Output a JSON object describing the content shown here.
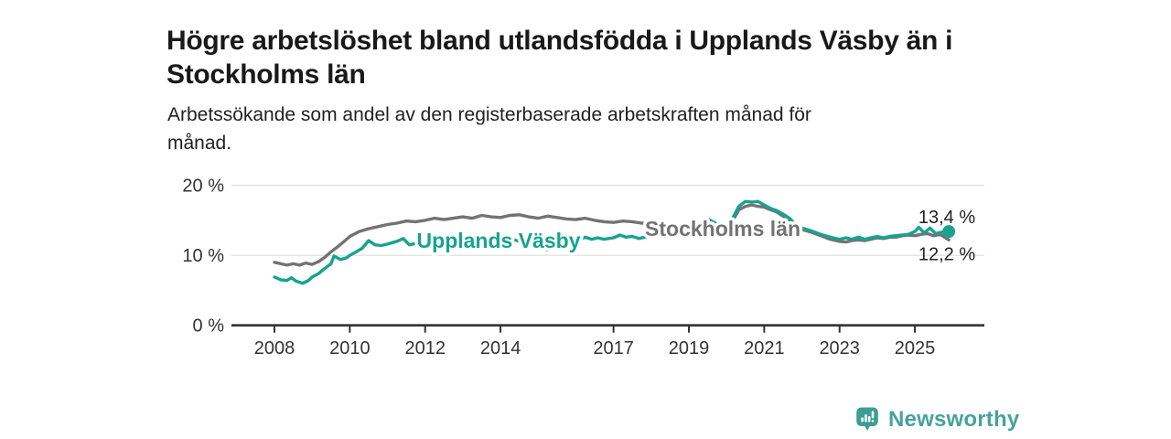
{
  "header": {
    "title": "Högre arbetslöshet bland utlandsfödda i Upplands Väsby än i Stockholms län",
    "title_lines": [
      "Högre arbetslöshet bland utlandsfödda i Upplands Väsby än i",
      "Stockholms län"
    ],
    "subtitle": "Arbetssökande som andel av den registerbaserade arbetskraften månad för månad.",
    "subtitle_lines": [
      "Arbetssökande som andel av den registerbaserade arbetskraften månad för",
      "månad."
    ]
  },
  "branding": {
    "name": "Newsworthy",
    "icon": "bar-chart-speech-bubble-icon",
    "icon_color": "#3d9d92",
    "text_color": "#46a39a"
  },
  "chart_data": {
    "type": "line",
    "title": "Högre arbetslöshet bland utlandsfödda i Upplands Väsby än i Stockholms län",
    "subtitle": "Arbetssökande som andel av den registerbaserade arbetskraften månad för månad.",
    "unit": "%",
    "legend_position": "inline-labels-on-lines",
    "grid": "horizontal-only",
    "x_axis": {
      "range": [
        2007.85,
        2026.8
      ],
      "ticks": [
        {
          "year": 2008,
          "label": "2008"
        },
        {
          "year": 2010,
          "label": "2010"
        },
        {
          "year": 2012,
          "label": "2012"
        },
        {
          "year": 2014,
          "label": "2014"
        },
        {
          "year": 2017,
          "label": "2017"
        },
        {
          "year": 2019,
          "label": "2019"
        },
        {
          "year": 2021,
          "label": "2021"
        },
        {
          "year": 2023,
          "label": "2023"
        },
        {
          "year": 2025,
          "label": "2025"
        }
      ]
    },
    "y_axis": {
      "range": [
        0,
        20
      ],
      "ticks": [
        {
          "value": 0,
          "label": "0 %"
        },
        {
          "value": 10,
          "label": "10 %"
        },
        {
          "value": 20,
          "label": "20 %"
        }
      ]
    },
    "style": {
      "grid_color": "#dedede",
      "axis_color": "#333333",
      "tick_label_color": "#333333",
      "end_label_color": "#222222",
      "line_width": 3.4
    },
    "series": [
      {
        "name": "Stockholms län",
        "color": "#737373",
        "end_label": "12,2 %",
        "end_label_position": "below",
        "end_dot": false,
        "label_at": {
          "year": 2019.9,
          "value": 13.8
        },
        "points": [
          [
            2008.0,
            9.0
          ],
          [
            2008.17,
            8.8
          ],
          [
            2008.33,
            8.6
          ],
          [
            2008.5,
            8.8
          ],
          [
            2008.67,
            8.6
          ],
          [
            2008.83,
            8.9
          ],
          [
            2009.0,
            8.7
          ],
          [
            2009.17,
            9.1
          ],
          [
            2009.33,
            9.7
          ],
          [
            2009.5,
            10.5
          ],
          [
            2009.67,
            11.2
          ],
          [
            2009.83,
            11.9
          ],
          [
            2010.0,
            12.7
          ],
          [
            2010.25,
            13.4
          ],
          [
            2010.5,
            13.8
          ],
          [
            2010.75,
            14.1
          ],
          [
            2011.0,
            14.4
          ],
          [
            2011.25,
            14.6
          ],
          [
            2011.5,
            14.9
          ],
          [
            2011.75,
            14.8
          ],
          [
            2012.0,
            15.0
          ],
          [
            2012.25,
            15.3
          ],
          [
            2012.5,
            15.1
          ],
          [
            2012.75,
            15.3
          ],
          [
            2013.0,
            15.5
          ],
          [
            2013.25,
            15.3
          ],
          [
            2013.5,
            15.7
          ],
          [
            2013.75,
            15.5
          ],
          [
            2014.0,
            15.4
          ],
          [
            2014.25,
            15.7
          ],
          [
            2014.5,
            15.8
          ],
          [
            2014.75,
            15.5
          ],
          [
            2015.0,
            15.3
          ],
          [
            2015.25,
            15.6
          ],
          [
            2015.5,
            15.4
          ],
          [
            2015.75,
            15.2
          ],
          [
            2016.0,
            15.1
          ],
          [
            2016.25,
            15.3
          ],
          [
            2016.5,
            15.0
          ],
          [
            2016.75,
            14.8
          ],
          [
            2017.0,
            14.7
          ],
          [
            2017.25,
            14.9
          ],
          [
            2017.5,
            14.8
          ],
          [
            2017.75,
            14.6
          ],
          [
            2018.0,
            14.5
          ],
          [
            2018.25,
            14.7
          ],
          [
            2018.5,
            14.4
          ],
          [
            2018.75,
            14.3
          ],
          [
            2019.0,
            14.1
          ],
          [
            2019.25,
            14.3
          ],
          [
            2019.5,
            14.0
          ],
          [
            2019.75,
            13.9
          ],
          [
            2020.0,
            14.0
          ],
          [
            2020.17,
            15.0
          ],
          [
            2020.33,
            16.5
          ],
          [
            2020.5,
            17.0
          ],
          [
            2020.67,
            17.2
          ],
          [
            2020.83,
            17.0
          ],
          [
            2021.0,
            16.9
          ],
          [
            2021.17,
            16.5
          ],
          [
            2021.33,
            16.2
          ],
          [
            2021.5,
            15.6
          ],
          [
            2021.67,
            15.0
          ],
          [
            2021.83,
            14.2
          ],
          [
            2022.0,
            13.7
          ],
          [
            2022.25,
            13.3
          ],
          [
            2022.5,
            12.8
          ],
          [
            2022.75,
            12.3
          ],
          [
            2023.0,
            12.0
          ],
          [
            2023.17,
            11.9
          ],
          [
            2023.33,
            12.1
          ],
          [
            2023.5,
            12.2
          ],
          [
            2023.67,
            12.1
          ],
          [
            2023.83,
            12.3
          ],
          [
            2024.0,
            12.5
          ],
          [
            2024.17,
            12.4
          ],
          [
            2024.33,
            12.6
          ],
          [
            2024.5,
            12.6
          ],
          [
            2024.67,
            12.8
          ],
          [
            2024.83,
            12.9
          ],
          [
            2025.0,
            12.8
          ],
          [
            2025.17,
            13.0
          ],
          [
            2025.33,
            13.1
          ],
          [
            2025.5,
            12.8
          ],
          [
            2025.67,
            13.0
          ],
          [
            2025.9,
            12.2
          ]
        ]
      },
      {
        "name": "Upplands Väsby",
        "color": "#17a38f",
        "end_label": "13,4 %",
        "end_label_position": "above",
        "end_dot": true,
        "label_at": {
          "year": 2013.95,
          "value": 12.1
        },
        "points": [
          [
            2008.0,
            6.9
          ],
          [
            2008.17,
            6.5
          ],
          [
            2008.33,
            6.4
          ],
          [
            2008.45,
            6.8
          ],
          [
            2008.58,
            6.3
          ],
          [
            2008.75,
            6.0
          ],
          [
            2008.9,
            6.4
          ],
          [
            2009.0,
            6.9
          ],
          [
            2009.17,
            7.4
          ],
          [
            2009.33,
            8.1
          ],
          [
            2009.5,
            8.8
          ],
          [
            2009.58,
            9.9
          ],
          [
            2009.75,
            9.4
          ],
          [
            2009.9,
            9.6
          ],
          [
            2010.0,
            10.0
          ],
          [
            2010.17,
            10.5
          ],
          [
            2010.33,
            11.0
          ],
          [
            2010.5,
            12.1
          ],
          [
            2010.67,
            11.5
          ],
          [
            2010.83,
            11.4
          ],
          [
            2011.0,
            11.6
          ],
          [
            2011.25,
            12.0
          ],
          [
            2011.42,
            12.4
          ],
          [
            2011.58,
            11.5
          ],
          [
            2011.75,
            11.7
          ],
          [
            2012.0,
            12.0
          ],
          [
            2012.25,
            12.3
          ],
          [
            2012.5,
            12.2
          ],
          [
            2012.75,
            12.4
          ],
          [
            2013.0,
            12.5
          ],
          [
            2013.25,
            12.2
          ],
          [
            2013.5,
            11.4
          ],
          [
            2013.75,
            12.0
          ],
          [
            2014.0,
            12.3
          ],
          [
            2014.25,
            12.4
          ],
          [
            2014.5,
            12.0
          ],
          [
            2014.75,
            11.5
          ],
          [
            2015.0,
            11.1
          ],
          [
            2015.25,
            10.8
          ],
          [
            2015.5,
            11.1
          ],
          [
            2015.75,
            11.7
          ],
          [
            2016.0,
            12.1
          ],
          [
            2016.25,
            12.6
          ],
          [
            2016.42,
            12.3
          ],
          [
            2016.58,
            12.5
          ],
          [
            2016.75,
            12.3
          ],
          [
            2017.0,
            12.5
          ],
          [
            2017.17,
            12.9
          ],
          [
            2017.33,
            12.6
          ],
          [
            2017.5,
            12.7
          ],
          [
            2017.67,
            12.4
          ],
          [
            2017.83,
            12.6
          ],
          [
            2018.0,
            12.9
          ],
          [
            2018.17,
            13.3
          ],
          [
            2018.33,
            13.5
          ],
          [
            2018.5,
            13.2
          ],
          [
            2018.75,
            13.1
          ],
          [
            2019.0,
            13.4
          ],
          [
            2019.17,
            13.6
          ],
          [
            2019.33,
            13.9
          ],
          [
            2019.5,
            15.2
          ],
          [
            2019.67,
            14.7
          ],
          [
            2019.83,
            14.3
          ],
          [
            2020.0,
            14.2
          ],
          [
            2020.17,
            15.4
          ],
          [
            2020.33,
            17.0
          ],
          [
            2020.5,
            17.7
          ],
          [
            2020.67,
            17.6
          ],
          [
            2020.83,
            17.7
          ],
          [
            2021.0,
            17.2
          ],
          [
            2021.17,
            16.7
          ],
          [
            2021.33,
            16.4
          ],
          [
            2021.5,
            15.9
          ],
          [
            2021.67,
            15.3
          ],
          [
            2021.83,
            14.4
          ],
          [
            2022.0,
            13.9
          ],
          [
            2022.25,
            13.5
          ],
          [
            2022.5,
            13.0
          ],
          [
            2022.75,
            12.6
          ],
          [
            2023.0,
            12.3
          ],
          [
            2023.17,
            12.5
          ],
          [
            2023.33,
            12.3
          ],
          [
            2023.5,
            12.6
          ],
          [
            2023.67,
            12.3
          ],
          [
            2023.83,
            12.5
          ],
          [
            2024.0,
            12.7
          ],
          [
            2024.17,
            12.5
          ],
          [
            2024.33,
            12.7
          ],
          [
            2024.5,
            12.8
          ],
          [
            2024.67,
            12.9
          ],
          [
            2024.83,
            13.0
          ],
          [
            2025.0,
            13.4
          ],
          [
            2025.1,
            14.0
          ],
          [
            2025.25,
            13.2
          ],
          [
            2025.4,
            13.9
          ],
          [
            2025.55,
            13.1
          ],
          [
            2025.7,
            13.3
          ],
          [
            2025.9,
            13.4
          ]
        ]
      }
    ]
  }
}
